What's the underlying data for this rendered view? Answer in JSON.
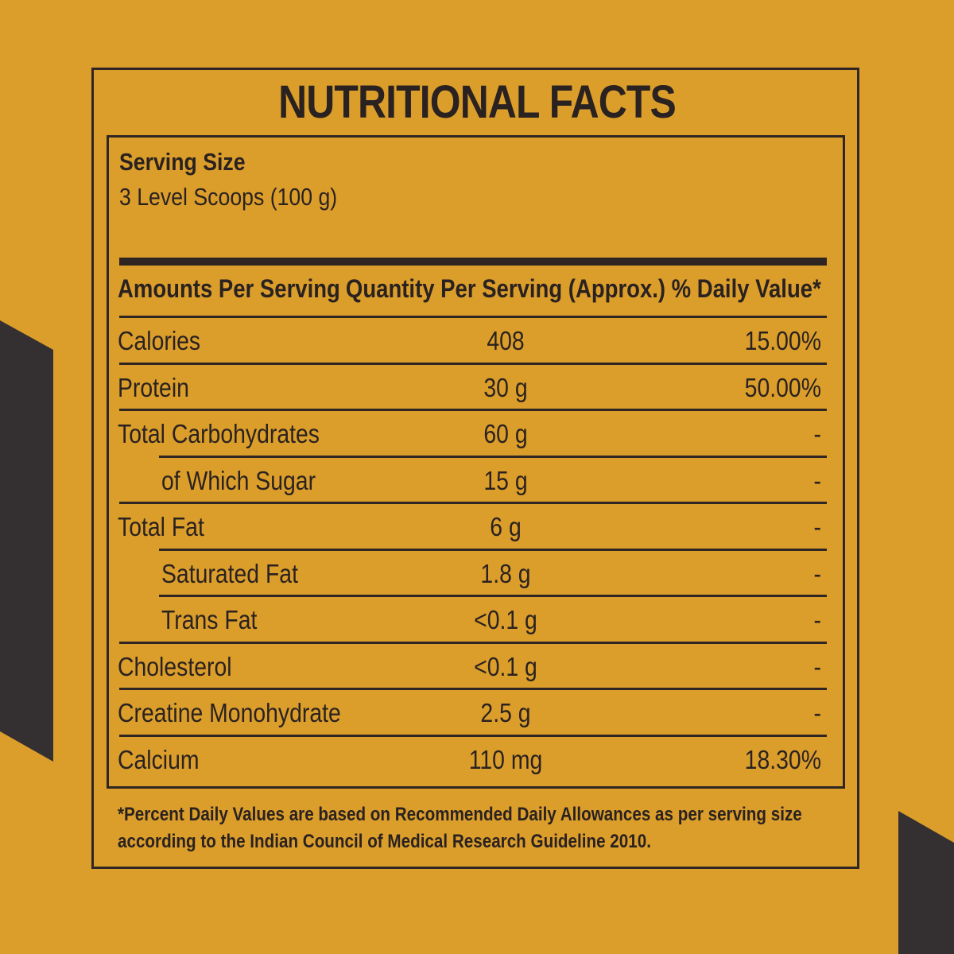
{
  "title": "NUTRITIONAL FACTS",
  "serving": {
    "label": "Serving Size",
    "value": "3 Level Scoops (100 g)"
  },
  "columns": {
    "amounts": "Amounts Per Serving",
    "quantity": "Quantity Per Serving (Approx.)",
    "daily_value": "% Daily Value*"
  },
  "rows": [
    {
      "name": "Calories",
      "quantity": "408",
      "daily_value": "15.00%",
      "indent": false
    },
    {
      "name": "Protein",
      "quantity": "30 g",
      "daily_value": "50.00%",
      "indent": false
    },
    {
      "name": "Total Carbohydrates",
      "quantity": "60 g",
      "daily_value": "-",
      "indent": false
    },
    {
      "name": "of Which Sugar",
      "quantity": "15 g",
      "daily_value": "-",
      "indent": true
    },
    {
      "name": "Total Fat",
      "quantity": "6 g",
      "daily_value": "-",
      "indent": false
    },
    {
      "name": "Saturated Fat",
      "quantity": "1.8 g",
      "daily_value": "-",
      "indent": true
    },
    {
      "name": "Trans Fat",
      "quantity": "<0.1 g",
      "daily_value": "-",
      "indent": true
    },
    {
      "name": "Cholesterol",
      "quantity": "<0.1 g",
      "daily_value": "-",
      "indent": false
    },
    {
      "name": "Creatine Monohydrate",
      "quantity": "2.5 g",
      "daily_value": "-",
      "indent": false
    },
    {
      "name": "Calcium",
      "quantity": "110 mg",
      "daily_value": "18.30%",
      "indent": false
    }
  ],
  "footnote": {
    "line1": "*Percent Daily Values are based on Recommended Daily Allowances as per serving size",
    "line2": "according to the Indian Council of Medical Research Guideline 2010."
  },
  "colors": {
    "background": "#DC9E2B",
    "ink": "#2a2220",
    "decoration": "#343031"
  }
}
